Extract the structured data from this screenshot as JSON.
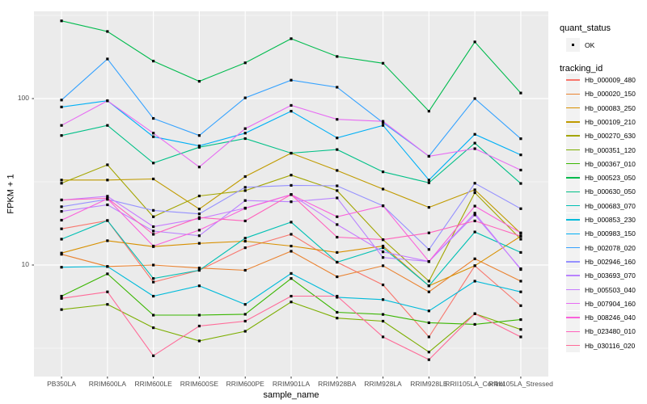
{
  "figure": {
    "y_axis": {
      "title": "FPKM + 1",
      "major_ticks": [
        "100",
        "10"
      ]
    },
    "x_axis": {
      "title": "sample_name"
    },
    "legend_quant": {
      "title": "quant_status",
      "item": "OK"
    },
    "legend_tracking": {
      "title": "tracking_id"
    }
  },
  "chart_data": {
    "type": "line",
    "title": "",
    "xlabel": "sample_name",
    "ylabel": "FPKM + 1",
    "y_scale": "log10",
    "ylim": [
      2.4,
      340
    ],
    "y_major_gridlines": [
      10,
      100
    ],
    "y_minor_gridlines": [
      3.162,
      31.62,
      316.2
    ],
    "grid": true,
    "legend_position": "right",
    "panel_background": "#EBEBEB",
    "gridline_color": "#FFFFFF",
    "point_color": "#000000",
    "quant_status_legend": {
      "title": "quant_status",
      "items": [
        "OK"
      ]
    },
    "series_legend_title": "tracking_id",
    "categories": [
      "PB350LA",
      "RRIM600LA",
      "RRIM600LE",
      "RRIM600SE",
      "RRIM600PE",
      "RRIM901LA",
      "RRIM928BA",
      "RRIM928LA",
      "RRIM928LE",
      "RRII105LA_Control",
      "RRII105LA_Stressed"
    ],
    "series": [
      {
        "name": "Hb_000009_480",
        "color": "#F8766D",
        "values": [
          16.5,
          18.5,
          7.9,
          9.3,
          12.7,
          15.3,
          10.4,
          7.6,
          3.7,
          9.9,
          5.7
        ]
      },
      {
        "name": "Hb_000020_150",
        "color": "#EA8331",
        "values": [
          11.6,
          9.8,
          10.0,
          9.6,
          9.3,
          12.1,
          8.5,
          9.9,
          6.9,
          10.9,
          8.0
        ]
      },
      {
        "name": "Hb_000083_250",
        "color": "#D89000",
        "values": [
          11.8,
          14.0,
          12.9,
          13.5,
          13.9,
          13.0,
          11.9,
          13.0,
          7.5,
          9.9,
          14.9
        ]
      },
      {
        "name": "Hb_000109_210",
        "color": "#C09B00",
        "values": [
          32.4,
          32.4,
          32.9,
          21.7,
          34.0,
          47.0,
          37.0,
          28.6,
          22.2,
          28.3,
          15.5
        ]
      },
      {
        "name": "Hb_000270_630",
        "color": "#A3A500",
        "values": [
          31.0,
          40.0,
          19.5,
          26.0,
          28.0,
          34.7,
          28.0,
          14.2,
          8.0,
          27.2,
          14.3
        ]
      },
      {
        "name": "Hb_000351_120",
        "color": "#7CAE00",
        "values": [
          5.4,
          5.8,
          4.2,
          3.5,
          4.0,
          6.0,
          4.8,
          4.6,
          3.0,
          5.1,
          4.1
        ]
      },
      {
        "name": "Hb_000367_010",
        "color": "#39B600",
        "values": [
          6.5,
          8.85,
          5.0,
          5.0,
          5.06,
          8.3,
          5.2,
          5.05,
          4.5,
          4.4,
          4.7
        ]
      },
      {
        "name": "Hb_000523_050",
        "color": "#00BB4E",
        "values": [
          293,
          253,
          168,
          127,
          164,
          229,
          179,
          163,
          84,
          219,
          108
        ]
      },
      {
        "name": "Hb_000630_050",
        "color": "#00C087",
        "values": [
          60,
          69,
          41,
          51,
          57.5,
          47,
          49.4,
          36.3,
          31.2,
          54,
          30.9
        ]
      },
      {
        "name": "Hb_000683_070",
        "color": "#00C0B4",
        "values": [
          14.3,
          18.5,
          8.3,
          9.3,
          14.5,
          18.1,
          10.4,
          12.7,
          7.5,
          15.8,
          11.9
        ]
      },
      {
        "name": "Hb_000853_230",
        "color": "#00BBDA",
        "values": [
          9.7,
          9.8,
          6.5,
          7.5,
          5.8,
          8.9,
          6.4,
          6.2,
          5.3,
          8.0,
          6.9
        ]
      },
      {
        "name": "Hb_000983_150",
        "color": "#00B0F6",
        "values": [
          89,
          97,
          59,
          52,
          62,
          84,
          58,
          69,
          32.4,
          61,
          45.9
        ]
      },
      {
        "name": "Hb_002078_020",
        "color": "#35A2FF",
        "values": [
          98,
          173,
          76,
          60,
          101,
          129,
          117,
          71.7,
          45,
          100,
          57.4
        ]
      },
      {
        "name": "Hb_002946_160",
        "color": "#9590FF",
        "values": [
          22.4,
          24.8,
          21.3,
          20.3,
          29.3,
          30.1,
          29.9,
          22.7,
          12.4,
          31.0,
          21.8
        ]
      },
      {
        "name": "Hb_003693_070",
        "color": "#B983FF",
        "values": [
          21.0,
          23.0,
          16.0,
          15.0,
          24.4,
          24.0,
          25.3,
          11.1,
          10.5,
          20.0,
          9.5
        ]
      },
      {
        "name": "Hb_005503_040",
        "color": "#C77CFF",
        "values": [
          24.6,
          25.9,
          17.0,
          19.0,
          22.0,
          26.5,
          17.5,
          12.0,
          10.5,
          20.5,
          9.4
        ]
      },
      {
        "name": "Hb_007904_160",
        "color": "#E76BF3",
        "values": [
          69,
          97,
          62,
          38.8,
          66,
          91,
          75,
          73,
          45,
          50,
          37.2
        ]
      },
      {
        "name": "Hb_008246_040",
        "color": "#FA62DB",
        "values": [
          18.6,
          25.0,
          13.0,
          16.2,
          21.9,
          26.5,
          19.5,
          22.7,
          10.5,
          22.6,
          15.6
        ]
      },
      {
        "name": "Hb_023480_010",
        "color": "#FF62BC",
        "values": [
          24.6,
          25.2,
          15.3,
          19.3,
          18.4,
          26.5,
          14.7,
          14.2,
          15.6,
          18.4,
          14.9
        ]
      },
      {
        "name": "Hb_030116_020",
        "color": "#FF6A98",
        "values": [
          6.3,
          6.9,
          2.85,
          4.3,
          4.6,
          6.5,
          6.5,
          3.7,
          2.7,
          5.1,
          3.7
        ]
      }
    ]
  }
}
